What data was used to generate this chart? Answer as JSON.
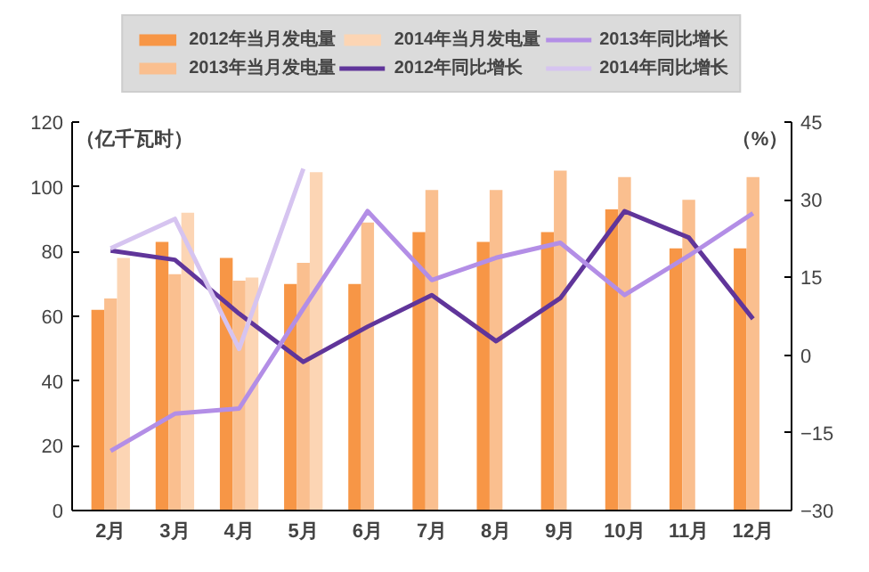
{
  "chart_data": {
    "type": "bar",
    "categories": [
      "2月",
      "3月",
      "4月",
      "5月",
      "6月",
      "7月",
      "8月",
      "9月",
      "10月",
      "11月",
      "12月"
    ],
    "ylabel": "（亿千瓦时）",
    "y2label": "（%）",
    "ylim": [
      0,
      120
    ],
    "yticks": [
      0,
      20,
      40,
      60,
      80,
      100,
      120
    ],
    "y2lim": [
      -30,
      45
    ],
    "y2ticks": [
      -30,
      -15,
      0,
      15,
      30,
      45
    ],
    "grid": false,
    "legend": "top",
    "series": [
      {
        "name": "2012年当月发电量",
        "color": "#f79646",
        "values": [
          62,
          83,
          78,
          70,
          70,
          86,
          83,
          86,
          93,
          81,
          81
        ]
      },
      {
        "name": "2013年当月发电量",
        "color": "#fabf8f",
        "values": [
          65.5,
          73,
          71,
          76.5,
          89,
          99,
          99,
          105,
          103,
          96,
          103
        ]
      },
      {
        "name": "2014年当月发电量",
        "color": "#fcd5b4",
        "values": [
          78,
          92,
          72,
          104.5,
          null,
          null,
          null,
          null,
          null,
          null,
          null
        ]
      },
      {
        "name": "2012年同比增长",
        "type": "line",
        "axis": "y2",
        "color": "#60359a",
        "values": [
          20.2,
          18.4,
          8,
          -1.3,
          5.5,
          11.6,
          2.7,
          11,
          27.8,
          22.7,
          7
        ]
      },
      {
        "name": "2013年同比增长",
        "type": "line",
        "axis": "y2",
        "color": "#b38ee6",
        "values": [
          -18.5,
          -11.3,
          -10.3,
          9,
          27.8,
          14.5,
          18.8,
          21.7,
          11.6,
          19.2,
          27.4
        ]
      },
      {
        "name": "2014年同比增长",
        "type": "line",
        "axis": "y2",
        "color": "#d6c4f0",
        "values": [
          20.6,
          26.3,
          1.2,
          36,
          null,
          null,
          null,
          null,
          null,
          null,
          null
        ]
      }
    ]
  }
}
